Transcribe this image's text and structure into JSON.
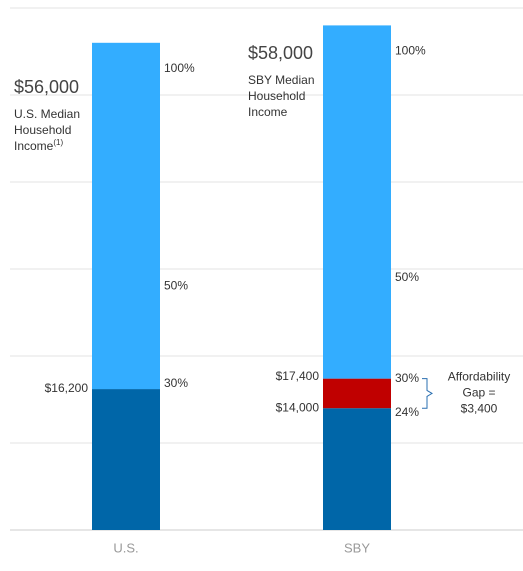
{
  "chart_data": {
    "type": "bar",
    "stacked": true,
    "categories": [
      "U.S.",
      "SBY"
    ],
    "series": [
      {
        "color": "#0066a8",
        "values": [
          16200,
          14000
        ],
        "value_labels": [
          "$16,200",
          "$14,000"
        ]
      },
      {
        "color": "#c00000",
        "values": [
          null,
          3400
        ]
      },
      {
        "color": "#33adff",
        "values": [
          39800,
          40600
        ]
      }
    ],
    "ylim": [
      0,
      60000
    ],
    "yticks": [
      0,
      10000,
      20000,
      30000,
      40000,
      50000,
      60000
    ],
    "grid": true,
    "bar_annotations": [
      {
        "total": 56000,
        "total_label": "$56,000",
        "caption": [
          "U.S. Median",
          "Household",
          "Income"
        ],
        "footnote": "(1)",
        "percents": [
          {
            "value": 100,
            "label": "100%"
          },
          {
            "value": 50,
            "label": "50%"
          },
          {
            "value": 30,
            "label": "30%"
          }
        ]
      },
      {
        "total": 58000,
        "total_label": "$58,000",
        "caption": [
          "SBY Median",
          "Household",
          "Income"
        ],
        "percents": [
          {
            "value": 100,
            "label": "100%"
          },
          {
            "value": 50,
            "label": "50%"
          },
          {
            "value": 30,
            "label": "30%"
          },
          {
            "value": 24,
            "label": "24%"
          }
        ]
      }
    ],
    "gap_annotation": {
      "top_label": "$17,400",
      "text": [
        "Affordability",
        "Gap =",
        "$3,400"
      ]
    }
  }
}
